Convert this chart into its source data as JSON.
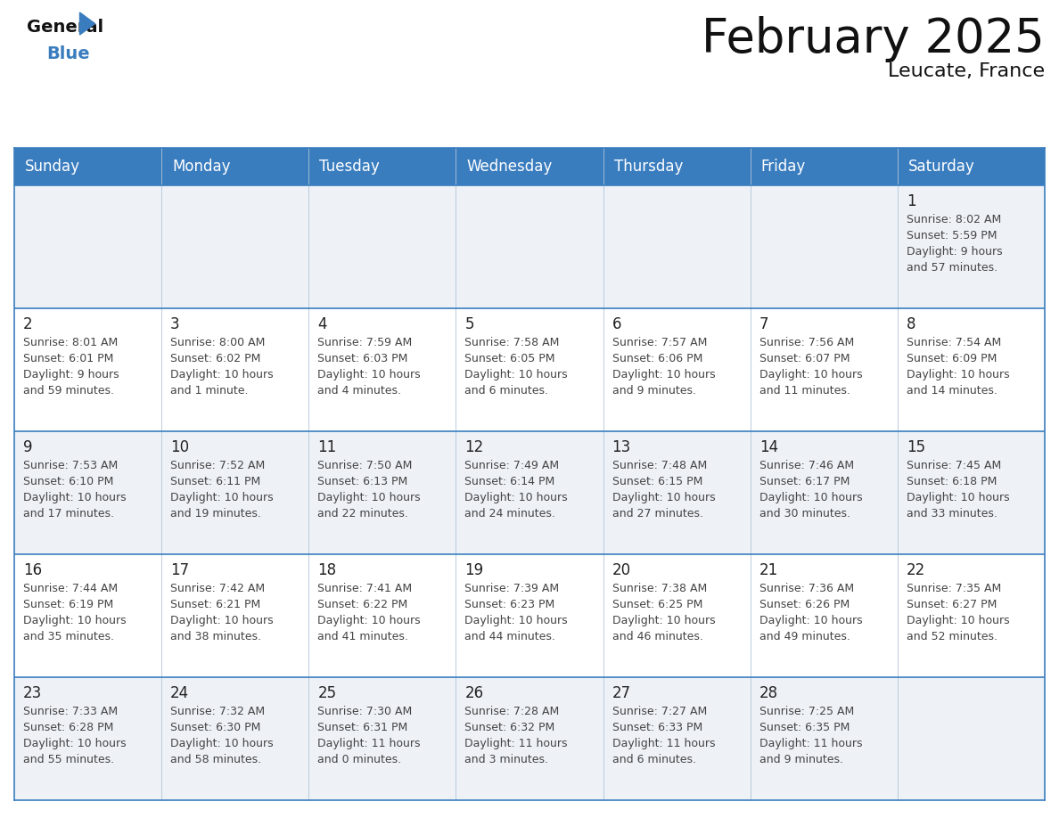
{
  "title": "February 2025",
  "subtitle": "Leucate, France",
  "header_bg": "#3a7dbf",
  "header_text": "#ffffff",
  "day_headers": [
    "Sunday",
    "Monday",
    "Tuesday",
    "Wednesday",
    "Thursday",
    "Friday",
    "Saturday"
  ],
  "cell_bg_row0": "#eef2f7",
  "cell_bg_even": "#ffffff",
  "cell_bg_odd": "#eef2f7",
  "border_color": "#3a7dbf",
  "grid_color": "#b0c4d8",
  "text_color": "#444444",
  "day_num_color": "#222222",
  "calendar_data": [
    [
      null,
      null,
      null,
      null,
      null,
      null,
      {
        "day": "1",
        "sunrise": "8:02 AM",
        "sunset": "5:59 PM",
        "daylight": "9 hours\nand 57 minutes."
      }
    ],
    [
      {
        "day": "2",
        "sunrise": "8:01 AM",
        "sunset": "6:01 PM",
        "daylight": "9 hours\nand 59 minutes."
      },
      {
        "day": "3",
        "sunrise": "8:00 AM",
        "sunset": "6:02 PM",
        "daylight": "10 hours\nand 1 minute."
      },
      {
        "day": "4",
        "sunrise": "7:59 AM",
        "sunset": "6:03 PM",
        "daylight": "10 hours\nand 4 minutes."
      },
      {
        "day": "5",
        "sunrise": "7:58 AM",
        "sunset": "6:05 PM",
        "daylight": "10 hours\nand 6 minutes."
      },
      {
        "day": "6",
        "sunrise": "7:57 AM",
        "sunset": "6:06 PM",
        "daylight": "10 hours\nand 9 minutes."
      },
      {
        "day": "7",
        "sunrise": "7:56 AM",
        "sunset": "6:07 PM",
        "daylight": "10 hours\nand 11 minutes."
      },
      {
        "day": "8",
        "sunrise": "7:54 AM",
        "sunset": "6:09 PM",
        "daylight": "10 hours\nand 14 minutes."
      }
    ],
    [
      {
        "day": "9",
        "sunrise": "7:53 AM",
        "sunset": "6:10 PM",
        "daylight": "10 hours\nand 17 minutes."
      },
      {
        "day": "10",
        "sunrise": "7:52 AM",
        "sunset": "6:11 PM",
        "daylight": "10 hours\nand 19 minutes."
      },
      {
        "day": "11",
        "sunrise": "7:50 AM",
        "sunset": "6:13 PM",
        "daylight": "10 hours\nand 22 minutes."
      },
      {
        "day": "12",
        "sunrise": "7:49 AM",
        "sunset": "6:14 PM",
        "daylight": "10 hours\nand 24 minutes."
      },
      {
        "day": "13",
        "sunrise": "7:48 AM",
        "sunset": "6:15 PM",
        "daylight": "10 hours\nand 27 minutes."
      },
      {
        "day": "14",
        "sunrise": "7:46 AM",
        "sunset": "6:17 PM",
        "daylight": "10 hours\nand 30 minutes."
      },
      {
        "day": "15",
        "sunrise": "7:45 AM",
        "sunset": "6:18 PM",
        "daylight": "10 hours\nand 33 minutes."
      }
    ],
    [
      {
        "day": "16",
        "sunrise": "7:44 AM",
        "sunset": "6:19 PM",
        "daylight": "10 hours\nand 35 minutes."
      },
      {
        "day": "17",
        "sunrise": "7:42 AM",
        "sunset": "6:21 PM",
        "daylight": "10 hours\nand 38 minutes."
      },
      {
        "day": "18",
        "sunrise": "7:41 AM",
        "sunset": "6:22 PM",
        "daylight": "10 hours\nand 41 minutes."
      },
      {
        "day": "19",
        "sunrise": "7:39 AM",
        "sunset": "6:23 PM",
        "daylight": "10 hours\nand 44 minutes."
      },
      {
        "day": "20",
        "sunrise": "7:38 AM",
        "sunset": "6:25 PM",
        "daylight": "10 hours\nand 46 minutes."
      },
      {
        "day": "21",
        "sunrise": "7:36 AM",
        "sunset": "6:26 PM",
        "daylight": "10 hours\nand 49 minutes."
      },
      {
        "day": "22",
        "sunrise": "7:35 AM",
        "sunset": "6:27 PM",
        "daylight": "10 hours\nand 52 minutes."
      }
    ],
    [
      {
        "day": "23",
        "sunrise": "7:33 AM",
        "sunset": "6:28 PM",
        "daylight": "10 hours\nand 55 minutes."
      },
      {
        "day": "24",
        "sunrise": "7:32 AM",
        "sunset": "6:30 PM",
        "daylight": "10 hours\nand 58 minutes."
      },
      {
        "day": "25",
        "sunrise": "7:30 AM",
        "sunset": "6:31 PM",
        "daylight": "11 hours\nand 0 minutes."
      },
      {
        "day": "26",
        "sunrise": "7:28 AM",
        "sunset": "6:32 PM",
        "daylight": "11 hours\nand 3 minutes."
      },
      {
        "day": "27",
        "sunrise": "7:27 AM",
        "sunset": "6:33 PM",
        "daylight": "11 hours\nand 6 minutes."
      },
      {
        "day": "28",
        "sunrise": "7:25 AM",
        "sunset": "6:35 PM",
        "daylight": "11 hours\nand 9 minutes."
      },
      null
    ]
  ],
  "title_fontsize": 38,
  "subtitle_fontsize": 16,
  "header_fontsize": 12,
  "daynum_fontsize": 12,
  "info_fontsize": 9
}
